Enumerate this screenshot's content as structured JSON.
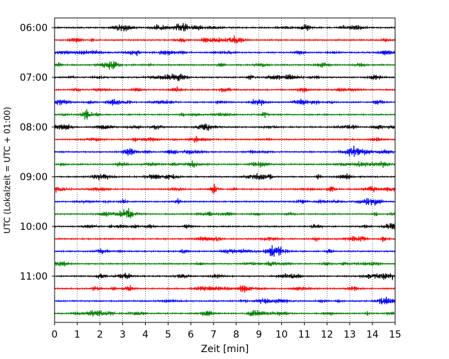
{
  "chart_data": {
    "type": "line",
    "title": "",
    "xlabel": "Zeit  [min]",
    "ylabel": "UTC (Lokalzeit = UTC + 01:00)",
    "xlim": [
      0,
      15
    ],
    "x_ticks": [
      0,
      1,
      2,
      3,
      4,
      5,
      6,
      7,
      8,
      9,
      10,
      11,
      12,
      13,
      14,
      15
    ],
    "x_tick_labels": [
      "0",
      "1",
      "2",
      "3",
      "4",
      "5",
      "6",
      "7",
      "8",
      "9",
      "10",
      "11",
      "12",
      "13",
      "14",
      "15"
    ],
    "y_tick_labels": [
      "06:00",
      "07:00",
      "08:00",
      "09:00",
      "10:00",
      "11:00"
    ],
    "grid_x": true,
    "trace_colors": [
      "#000000",
      "#ff0000",
      "#0000ff",
      "#007f00"
    ],
    "traces": [
      {
        "start": "06:00",
        "color": "#000000"
      },
      {
        "start": "06:15",
        "color": "#ff0000"
      },
      {
        "start": "06:30",
        "color": "#0000ff"
      },
      {
        "start": "06:45",
        "color": "#007f00"
      },
      {
        "start": "07:00",
        "color": "#000000"
      },
      {
        "start": "07:15",
        "color": "#ff0000"
      },
      {
        "start": "07:30",
        "color": "#0000ff"
      },
      {
        "start": "07:45",
        "color": "#007f00"
      },
      {
        "start": "08:00",
        "color": "#000000"
      },
      {
        "start": "08:15",
        "color": "#ff0000"
      },
      {
        "start": "08:30",
        "color": "#0000ff"
      },
      {
        "start": "08:45",
        "color": "#007f00"
      },
      {
        "start": "09:00",
        "color": "#000000"
      },
      {
        "start": "09:15",
        "color": "#ff0000"
      },
      {
        "start": "09:30",
        "color": "#0000ff"
      },
      {
        "start": "09:45",
        "color": "#007f00"
      },
      {
        "start": "10:00",
        "color": "#000000"
      },
      {
        "start": "10:15",
        "color": "#ff0000"
      },
      {
        "start": "10:30",
        "color": "#0000ff"
      },
      {
        "start": "10:45",
        "color": "#007f00"
      },
      {
        "start": "11:00",
        "color": "#000000"
      },
      {
        "start": "11:15",
        "color": "#ff0000"
      },
      {
        "start": "11:30",
        "color": "#0000ff"
      },
      {
        "start": "11:45",
        "color": "#007f00"
      }
    ]
  }
}
